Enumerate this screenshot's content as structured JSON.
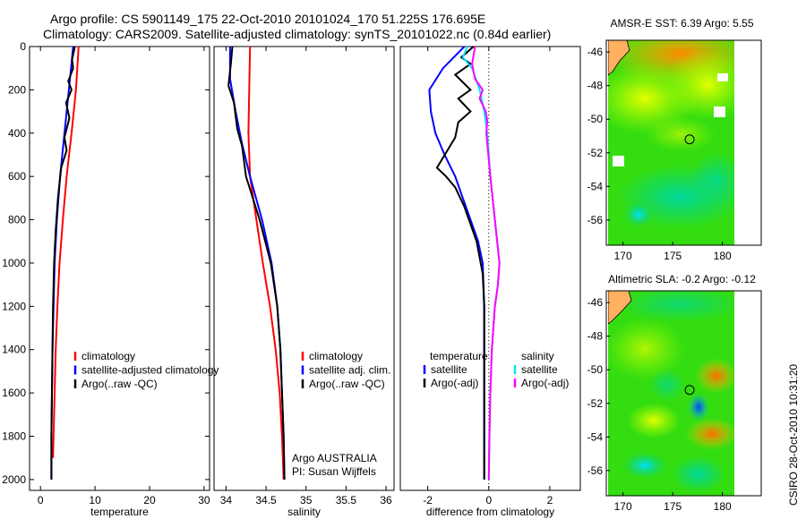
{
  "header": {
    "line1": "Argo profile: CS 5901149_175 22-Oct-2010 20101024_170 51.225S 176.695E",
    "line2": "Climatology: CARS2009. Satellite-adjusted climatology: synTS_20101022.nc (0.84d earlier)"
  },
  "colors": {
    "climatology": "#ff0000",
    "satellite": "#0000ff",
    "argo": "#000000",
    "sat_diff": "#00e5ff",
    "argo_adj": "#ff00ff"
  },
  "chart_data": [
    {
      "type": "line",
      "id": "temperature",
      "xlabel": "temperature",
      "ylabel": "",
      "xlim": [
        -2,
        31
      ],
      "ylim": [
        2050,
        0
      ],
      "xticks": [
        0,
        10,
        20,
        30
      ],
      "yticks": [
        0,
        200,
        400,
        600,
        800,
        1000,
        1200,
        1400,
        1600,
        1800,
        2000
      ],
      "legend": [
        "climatology",
        "satellite-adjusted climatology",
        "Argo(..raw -QC)"
      ],
      "series": [
        {
          "name": "climatology",
          "color": "#ff0000",
          "points": [
            [
              7.0,
              0
            ],
            [
              6.5,
              200
            ],
            [
              5.7,
              400
            ],
            [
              4.8,
              600
            ],
            [
              4.1,
              800
            ],
            [
              3.5,
              1000
            ],
            [
              3.1,
              1200
            ],
            [
              2.8,
              1400
            ],
            [
              2.6,
              1600
            ],
            [
              2.4,
              1800
            ],
            [
              2.3,
              1900
            ]
          ]
        },
        {
          "name": "satellite-adjusted climatology",
          "color": "#0000ff",
          "points": [
            [
              6.0,
              0
            ],
            [
              5.6,
              100
            ],
            [
              5.2,
              200
            ],
            [
              4.4,
              400
            ],
            [
              3.6,
              600
            ],
            [
              3.0,
              800
            ],
            [
              2.6,
              1000
            ],
            [
              2.4,
              1200
            ],
            [
              2.2,
              1400
            ],
            [
              2.1,
              1600
            ],
            [
              2.0,
              1800
            ],
            [
              2.0,
              2000
            ]
          ]
        },
        {
          "name": "Argo(..raw -QC)",
          "color": "#000000",
          "points": [
            [
              6.3,
              0
            ],
            [
              5.8,
              60
            ],
            [
              6.0,
              100
            ],
            [
              5.1,
              160
            ],
            [
              5.7,
              200
            ],
            [
              4.7,
              260
            ],
            [
              5.3,
              330
            ],
            [
              4.4,
              420
            ],
            [
              4.8,
              480
            ],
            [
              3.8,
              560
            ],
            [
              3.2,
              700
            ],
            [
              2.8,
              850
            ],
            [
              2.5,
              1000
            ],
            [
              2.3,
              1200
            ],
            [
              2.2,
              1400
            ],
            [
              2.1,
              1600
            ],
            [
              2.0,
              1800
            ],
            [
              2.0,
              2000
            ]
          ]
        }
      ]
    },
    {
      "type": "line",
      "id": "salinity",
      "xlabel": "salinity",
      "ylabel": "",
      "xlim": [
        33.85,
        36.1
      ],
      "ylim": [
        2050,
        0
      ],
      "xticks": [
        34,
        34.5,
        35,
        35.5,
        36
      ],
      "yticks": [],
      "legend": [
        "climatology",
        "satellite adj. clim.",
        "Argo(..raw -QC)"
      ],
      "series": [
        {
          "name": "climatology",
          "color": "#ff0000",
          "points": [
            [
              34.3,
              0
            ],
            [
              34.29,
              200
            ],
            [
              34.28,
              400
            ],
            [
              34.3,
              600
            ],
            [
              34.38,
              800
            ],
            [
              34.46,
              1000
            ],
            [
              34.55,
              1200
            ],
            [
              34.62,
              1400
            ],
            [
              34.67,
              1600
            ],
            [
              34.7,
              1800
            ],
            [
              34.72,
              2000
            ]
          ]
        },
        {
          "name": "satellite adj. clim.",
          "color": "#0000ff",
          "points": [
            [
              34.05,
              0
            ],
            [
              34.05,
              150
            ],
            [
              34.12,
              300
            ],
            [
              34.2,
              450
            ],
            [
              34.3,
              600
            ],
            [
              34.45,
              800
            ],
            [
              34.57,
              1000
            ],
            [
              34.64,
              1200
            ],
            [
              34.68,
              1400
            ],
            [
              34.7,
              1600
            ],
            [
              34.72,
              1800
            ],
            [
              34.73,
              2000
            ]
          ]
        },
        {
          "name": "Argo(..raw -QC)",
          "color": "#000000",
          "points": [
            [
              34.08,
              0
            ],
            [
              34.06,
              80
            ],
            [
              34.03,
              180
            ],
            [
              34.1,
              260
            ],
            [
              34.14,
              380
            ],
            [
              34.2,
              460
            ],
            [
              34.25,
              600
            ],
            [
              34.42,
              800
            ],
            [
              34.56,
              1000
            ],
            [
              34.64,
              1200
            ],
            [
              34.68,
              1400
            ],
            [
              34.7,
              1600
            ],
            [
              34.72,
              1800
            ],
            [
              34.73,
              2000
            ]
          ]
        }
      ],
      "annotations": [
        "Argo AUSTRALIA",
        "PI: Susan Wijffels"
      ]
    },
    {
      "type": "line",
      "id": "difference",
      "xlabel": "difference from climatology",
      "ylabel": "",
      "xlim": [
        -2.9,
        3.0
      ],
      "ylim": [
        2050,
        0
      ],
      "xticks": [
        -2,
        0,
        2
      ],
      "yticks": [],
      "legend_temperature": {
        "title": "temperature",
        "items": [
          "satellite",
          "Argo(-adj)"
        ]
      },
      "legend_salinity": {
        "title": "salinity",
        "items": [
          "satellite",
          "Argo(-adj)"
        ]
      },
      "series": [
        {
          "name": "temperature satellite",
          "color": "#0000ff",
          "points": [
            [
              -0.8,
              0
            ],
            [
              -1.5,
              100
            ],
            [
              -1.95,
              200
            ],
            [
              -1.9,
              300
            ],
            [
              -1.75,
              400
            ],
            [
              -1.45,
              500
            ],
            [
              -1.1,
              600
            ],
            [
              -0.85,
              700
            ],
            [
              -0.6,
              800
            ],
            [
              -0.35,
              900
            ],
            [
              -0.2,
              1000
            ],
            [
              -0.15,
              1200
            ],
            [
              -0.15,
              1400
            ],
            [
              -0.15,
              1600
            ],
            [
              -0.15,
              1800
            ],
            [
              -0.15,
              2000
            ]
          ]
        },
        {
          "name": "temperature Argo(-adj)",
          "color": "#000000",
          "points": [
            [
              -0.5,
              0
            ],
            [
              -0.9,
              50
            ],
            [
              -0.6,
              80
            ],
            [
              -1.1,
              130
            ],
            [
              -0.6,
              200
            ],
            [
              -1.0,
              240
            ],
            [
              -0.6,
              300
            ],
            [
              -1.0,
              350
            ],
            [
              -1.1,
              420
            ],
            [
              -1.7,
              560
            ],
            [
              -1.4,
              600
            ],
            [
              -1.1,
              650
            ],
            [
              -0.8,
              740
            ],
            [
              -0.4,
              900
            ],
            [
              -0.2,
              1050
            ],
            [
              -0.15,
              1200
            ],
            [
              -0.15,
              2000
            ]
          ]
        },
        {
          "name": "salinity satellite",
          "color": "#00e5ff",
          "points": [
            [
              -0.7,
              0
            ],
            [
              -0.85,
              50
            ],
            [
              -0.55,
              100
            ],
            [
              -0.3,
              200
            ],
            [
              -0.15,
              300
            ],
            [
              -0.05,
              400
            ],
            [
              0.05,
              600
            ],
            [
              0.2,
              800
            ],
            [
              0.35,
              1000
            ],
            [
              0.3,
              1100
            ],
            [
              0.2,
              1200
            ],
            [
              0.1,
              1400
            ],
            [
              0.05,
              1600
            ],
            [
              0.02,
              1800
            ],
            [
              0.0,
              2000
            ]
          ]
        },
        {
          "name": "salinity Argo(-adj)",
          "color": "#ff00ff",
          "points": [
            [
              -0.45,
              0
            ],
            [
              -0.55,
              80
            ],
            [
              -0.45,
              150
            ],
            [
              -0.2,
              200
            ],
            [
              -0.3,
              240
            ],
            [
              -0.1,
              300
            ],
            [
              -0.05,
              340
            ],
            [
              -0.08,
              400
            ],
            [
              0.05,
              600
            ],
            [
              0.2,
              800
            ],
            [
              0.35,
              1000
            ],
            [
              0.3,
              1100
            ],
            [
              0.2,
              1200
            ],
            [
              0.1,
              1400
            ],
            [
              0.05,
              1600
            ],
            [
              0.02,
              1800
            ],
            [
              0.0,
              2000
            ]
          ]
        }
      ]
    },
    {
      "type": "heatmap",
      "id": "amsre",
      "title": "AMSR-E SST: 6.39 Argo: 5.55",
      "xlim": [
        168.5,
        181.2
      ],
      "ylim": [
        -57.5,
        -45.3
      ],
      "xticks": [
        170,
        175,
        180
      ],
      "yticks": [
        -46,
        -48,
        -50,
        -52,
        -54,
        -56
      ],
      "marker": [
        176.7,
        -51.2
      ]
    },
    {
      "type": "heatmap",
      "id": "sla",
      "title": "Altimetric SLA: -0.2 Argo: -0.12",
      "xlim": [
        168.5,
        181.2
      ],
      "ylim": [
        -57.5,
        -45.3
      ],
      "xticks": [
        170,
        175,
        180
      ],
      "yticks": [
        -46,
        -48,
        -50,
        -52,
        -54,
        -56
      ],
      "marker": [
        176.7,
        -51.2
      ]
    }
  ],
  "signature": "CSIRO 28-Oct-2010 10:31:20"
}
